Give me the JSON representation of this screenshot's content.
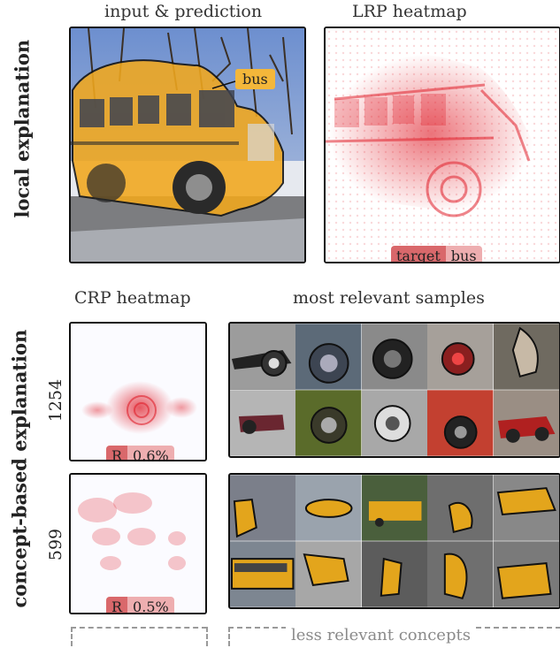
{
  "top": {
    "title_left": "input & prediction",
    "title_right": "LRP heatmap",
    "prediction_tag": "bus",
    "target_chip": {
      "label": "target",
      "value": "bus"
    }
  },
  "side_labels": {
    "local": "local explanation",
    "concept": "concept-based explanation"
  },
  "middle": {
    "title_left": "CRP heatmap",
    "title_right": "most relevant samples"
  },
  "concepts": [
    {
      "id": "1254",
      "chip": {
        "label": "R",
        "value": "0.6%"
      }
    },
    {
      "id": "599",
      "chip": {
        "label": "R",
        "value": "0.5%"
      }
    }
  ],
  "footer": {
    "text": "less relevant concepts"
  },
  "colors": {
    "heat": "#e0202b",
    "bus": "#f2a81d",
    "chip_dark": "#d9686b",
    "chip_light": "#eeaeb0"
  }
}
